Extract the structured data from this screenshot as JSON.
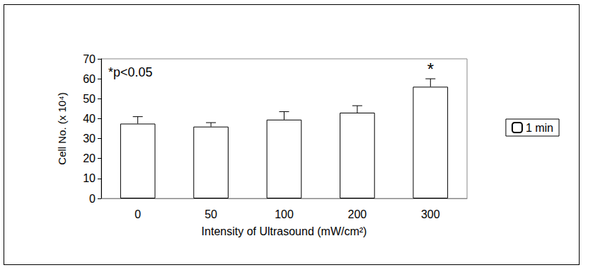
{
  "chart_data": {
    "type": "bar",
    "x_label": "Intensity of Ultrasound (mW/cm²)",
    "y_label": "Cell No. (x 10⁴)",
    "categories": [
      "0",
      "50",
      "100",
      "200",
      "300"
    ],
    "series": [
      {
        "name": "1 min",
        "color": "#ffffff",
        "values": [
          37.5,
          36,
          39.5,
          43,
          56
        ],
        "errors": [
          3.5,
          2,
          4,
          3.5,
          4
        ]
      }
    ],
    "ylim": [
      0,
      70
    ],
    "yticks": [
      0,
      10,
      20,
      30,
      40,
      50,
      60,
      70
    ],
    "grid": false,
    "legend": "right",
    "annotations": [
      {
        "text": "*p<0.05"
      },
      {
        "text": "*",
        "category": "300"
      }
    ]
  }
}
